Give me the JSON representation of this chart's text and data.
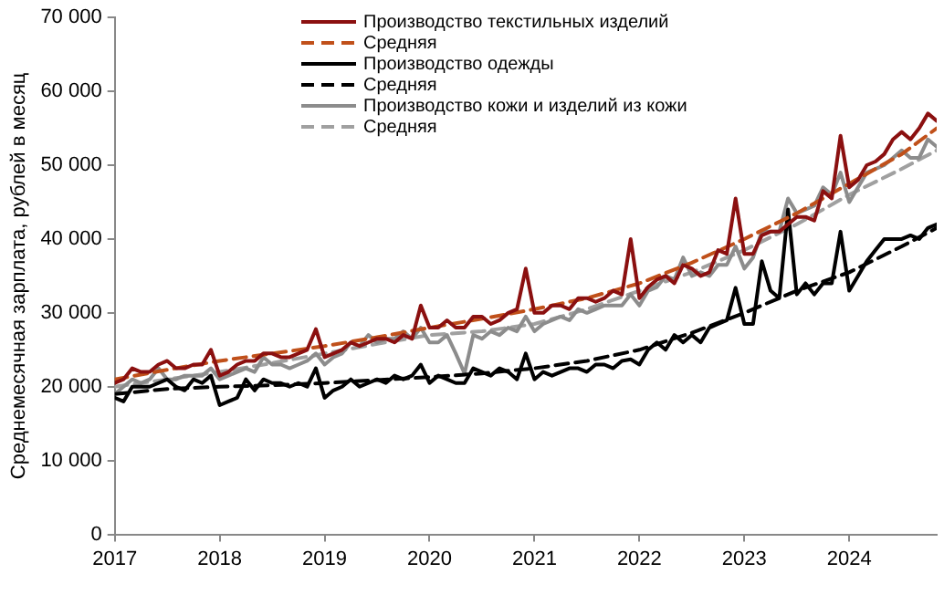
{
  "chart_data": {
    "type": "line",
    "ylabel": "Среднемесячная зарплата, рублей в месяц",
    "x": [
      "2017-01",
      "2017-02",
      "2017-03",
      "2017-04",
      "2017-05",
      "2017-06",
      "2017-07",
      "2017-08",
      "2017-09",
      "2017-10",
      "2017-11",
      "2017-12",
      "2018-01",
      "2018-02",
      "2018-03",
      "2018-04",
      "2018-05",
      "2018-06",
      "2018-07",
      "2018-08",
      "2018-09",
      "2018-10",
      "2018-11",
      "2018-12",
      "2019-01",
      "2019-02",
      "2019-03",
      "2019-04",
      "2019-05",
      "2019-06",
      "2019-07",
      "2019-08",
      "2019-09",
      "2019-10",
      "2019-11",
      "2019-12",
      "2020-01",
      "2020-02",
      "2020-03",
      "2020-04",
      "2020-05",
      "2020-06",
      "2020-07",
      "2020-08",
      "2020-09",
      "2020-10",
      "2020-11",
      "2020-12",
      "2021-01",
      "2021-02",
      "2021-03",
      "2021-04",
      "2021-05",
      "2021-06",
      "2021-07",
      "2021-08",
      "2021-09",
      "2021-10",
      "2021-11",
      "2021-12",
      "2022-01",
      "2022-02",
      "2022-03",
      "2022-04",
      "2022-05",
      "2022-06",
      "2022-07",
      "2022-08",
      "2022-09",
      "2022-10",
      "2022-11",
      "2022-12",
      "2023-01",
      "2023-02",
      "2023-03",
      "2023-04",
      "2023-05",
      "2023-06",
      "2023-07",
      "2023-08",
      "2023-09",
      "2023-10",
      "2023-11",
      "2023-12",
      "2024-01",
      "2024-02",
      "2024-03",
      "2024-04",
      "2024-05",
      "2024-06",
      "2024-07",
      "2024-08",
      "2024-09",
      "2024-10",
      "2024-11"
    ],
    "series": [
      {
        "name": "Производство текстильных изделий",
        "color": "#8b1010",
        "values": [
          20500,
          21000,
          22500,
          22000,
          22000,
          23000,
          23500,
          22500,
          22500,
          23000,
          23000,
          25000,
          21500,
          22000,
          23000,
          23500,
          23500,
          24500,
          24500,
          24000,
          24000,
          24500,
          25000,
          27800,
          24000,
          24500,
          25000,
          26000,
          25500,
          26000,
          26500,
          26500,
          26000,
          27000,
          26500,
          31000,
          28000,
          28000,
          29000,
          28000,
          28000,
          29500,
          29500,
          28500,
          29000,
          30000,
          30500,
          36000,
          30000,
          30000,
          31000,
          31000,
          30500,
          32000,
          32000,
          31500,
          32000,
          33000,
          32500,
          40000,
          32000,
          33500,
          34500,
          35000,
          34000,
          36500,
          36000,
          35000,
          35500,
          38500,
          38000,
          45500,
          38000,
          38000,
          40500,
          41000,
          41000,
          42000,
          43000,
          43000,
          42500,
          46500,
          45500,
          54000,
          47000,
          48000,
          50000,
          50500,
          51500,
          53500,
          54500,
          53500,
          55000,
          57000,
          56000
        ]
      },
      {
        "name": "Средняя",
        "color": "#c0501a",
        "line_style": "dashed",
        "x": [
          "2017-01",
          "2017-07",
          "2018-01",
          "2018-07",
          "2019-01",
          "2019-07",
          "2020-01",
          "2020-07",
          "2021-01",
          "2021-07",
          "2022-01",
          "2022-07",
          "2023-01",
          "2023-07",
          "2024-01",
          "2024-07",
          "2024-11"
        ],
        "values": [
          21000,
          22300,
          23500,
          24500,
          25500,
          26700,
          28000,
          29200,
          30500,
          32000,
          34000,
          36800,
          40000,
          43500,
          47500,
          51500,
          55000
        ]
      },
      {
        "name": "Производство одежды",
        "color": "#000000",
        "values": [
          18500,
          18000,
          20000,
          20000,
          20000,
          20500,
          21000,
          20000,
          19500,
          21000,
          20500,
          21500,
          17500,
          18000,
          18500,
          21000,
          19500,
          21000,
          20500,
          20500,
          20000,
          20500,
          20000,
          22500,
          18500,
          19500,
          20000,
          21000,
          20000,
          20500,
          21000,
          20500,
          21500,
          21000,
          21500,
          23000,
          20500,
          21500,
          21000,
          20500,
          20500,
          22500,
          22000,
          21500,
          22500,
          22000,
          21000,
          24500,
          21000,
          22000,
          21500,
          22000,
          22500,
          22500,
          22000,
          23000,
          23000,
          22500,
          23500,
          23700,
          23000,
          25000,
          26000,
          25000,
          27000,
          26000,
          27000,
          26000,
          28000,
          28500,
          29000,
          33400,
          28500,
          28500,
          37000,
          33000,
          32000,
          44000,
          32500,
          34000,
          32500,
          34000,
          34000,
          41000,
          33000,
          35000,
          37000,
          38500,
          40000,
          40000,
          40000,
          40500,
          40000,
          41500,
          42000
        ]
      },
      {
        "name": "Средняя",
        "color": "#000000",
        "line_style": "dashed",
        "x": [
          "2017-01",
          "2017-07",
          "2018-01",
          "2018-07",
          "2019-01",
          "2019-07",
          "2020-01",
          "2020-07",
          "2021-01",
          "2021-07",
          "2022-01",
          "2022-07",
          "2023-01",
          "2023-07",
          "2024-01",
          "2024-07",
          "2024-11"
        ],
        "values": [
          19000,
          19700,
          20000,
          20200,
          20500,
          20900,
          21300,
          21800,
          22500,
          23500,
          25000,
          27300,
          30000,
          33000,
          35500,
          39000,
          41500
        ]
      },
      {
        "name": "Производство кожи и изделий из кожи",
        "color": "#8c8c8c",
        "values": [
          19000,
          20000,
          21000,
          20500,
          21000,
          22500,
          21000,
          21000,
          21500,
          21500,
          21500,
          22500,
          21000,
          21500,
          22000,
          22500,
          22000,
          24000,
          23000,
          23000,
          22500,
          23000,
          23500,
          24500,
          23000,
          24000,
          24500,
          26000,
          25500,
          27000,
          26000,
          26500,
          26500,
          27500,
          26500,
          28000,
          26000,
          26000,
          27000,
          24500,
          21800,
          27000,
          26500,
          27500,
          27000,
          28000,
          27500,
          29500,
          27500,
          28500,
          29000,
          29500,
          29000,
          30500,
          30000,
          30500,
          31000,
          31000,
          31000,
          32500,
          31000,
          33000,
          33500,
          35000,
          34500,
          37500,
          35000,
          35500,
          35000,
          36500,
          36500,
          39000,
          36000,
          37500,
          41000,
          41000,
          41000,
          45500,
          43500,
          44000,
          44500,
          47000,
          46000,
          49000,
          45000,
          47000,
          49000,
          49500,
          50000,
          51000,
          52000,
          51000,
          51000,
          53500,
          52500
        ]
      },
      {
        "name": "Средняя",
        "color": "#a0a0a0",
        "line_style": "dashed",
        "x": [
          "2017-01",
          "2017-07",
          "2018-01",
          "2018-07",
          "2019-01",
          "2019-07",
          "2020-01",
          "2020-07",
          "2021-01",
          "2021-07",
          "2022-01",
          "2022-07",
          "2023-01",
          "2023-07",
          "2024-01",
          "2024-07",
          "2024-11"
        ],
        "values": [
          20000,
          21000,
          22000,
          23200,
          24500,
          25800,
          27000,
          27500,
          28500,
          30500,
          33000,
          35500,
          38500,
          42000,
          46000,
          49500,
          52000
        ]
      }
    ],
    "xlim": [
      "2017-01",
      "2024-11"
    ],
    "xticks": [
      "2017",
      "2018",
      "2019",
      "2020",
      "2021",
      "2022",
      "2023",
      "2024"
    ],
    "ylim": [
      0,
      70000
    ],
    "yticks": [
      0,
      {
        "value": 10000,
        "label": "10 000"
      },
      {
        "value": 20000,
        "label": "20 000"
      },
      {
        "value": 30000,
        "label": "30 000"
      },
      {
        "value": 40000,
        "label": "40 000"
      },
      {
        "value": 50000,
        "label": "50 000"
      },
      {
        "value": 60000,
        "label": "60 000"
      },
      {
        "value": 70000,
        "label": "70 000"
      }
    ],
    "legend": "top",
    "marker": "none"
  }
}
